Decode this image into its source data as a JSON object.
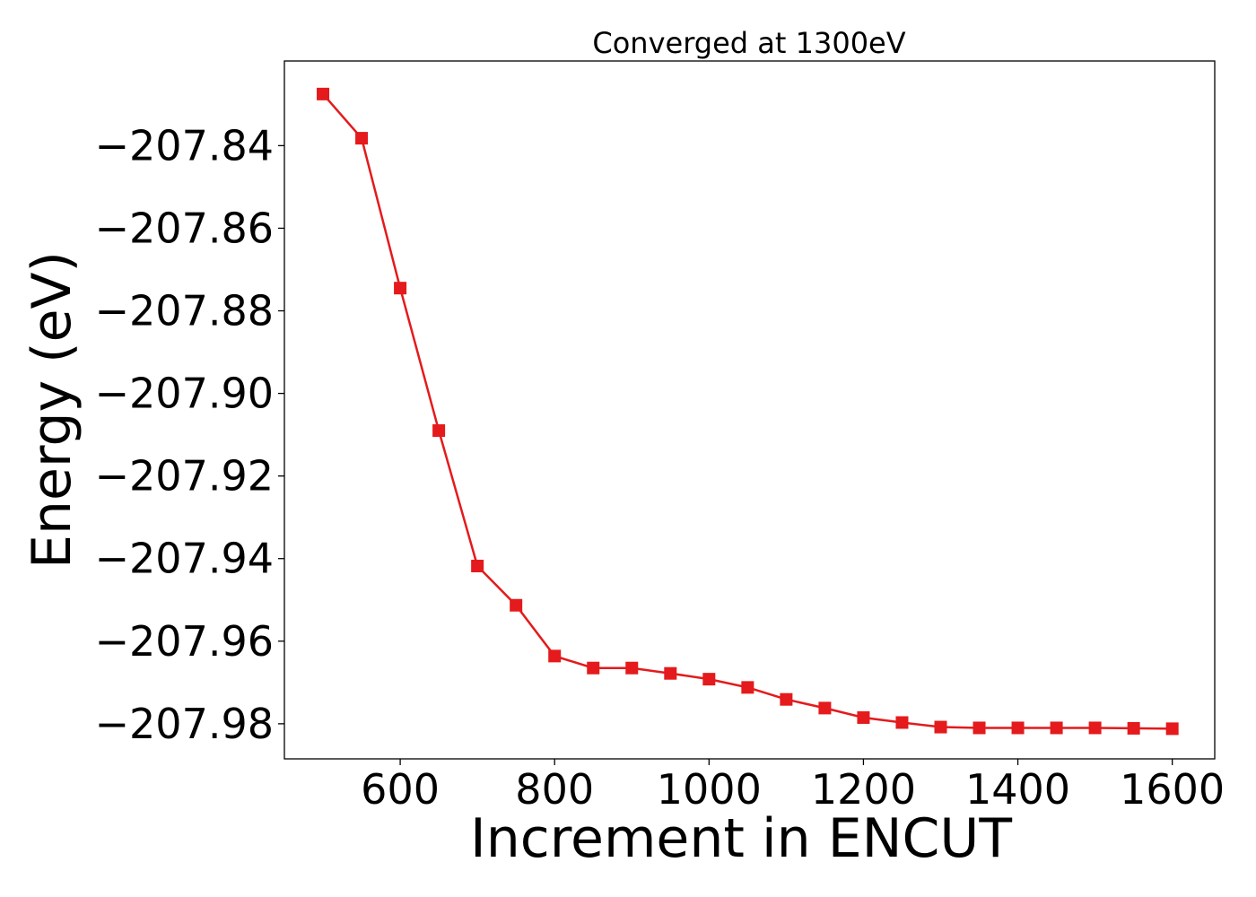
{
  "chart_data": {
    "type": "line",
    "title": "Converged at 1300eV",
    "xlabel": "Increment in ENCUT",
    "ylabel": "Energy (eV)",
    "xlim": [
      450,
      1655
    ],
    "ylim": [
      -207.9885,
      -207.8195
    ],
    "x_ticks": [
      600,
      800,
      1000,
      1200,
      1400,
      1600
    ],
    "x_tick_labels": [
      "600",
      "800",
      "1000",
      "1200",
      "1400",
      "1600"
    ],
    "y_ticks": [
      -207.84,
      -207.86,
      -207.88,
      -207.9,
      -207.92,
      -207.94,
      -207.96,
      -207.98
    ],
    "y_tick_labels": [
      "−207.84",
      "−207.86",
      "−207.88",
      "−207.90",
      "−207.92",
      "−207.94",
      "−207.96",
      "−207.98"
    ],
    "grid": false,
    "legend": "none",
    "series": [
      {
        "color": "#e41a1c",
        "marker": "square",
        "x": [
          500,
          550,
          600,
          650,
          700,
          750,
          800,
          850,
          900,
          950,
          1000,
          1050,
          1100,
          1150,
          1200,
          1250,
          1300,
          1350,
          1400,
          1450,
          1500,
          1550,
          1600
        ],
        "y": [
          -207.8275,
          -207.8382,
          -207.8745,
          -207.909,
          -207.9418,
          -207.9513,
          -207.9636,
          -207.9665,
          -207.9665,
          -207.9678,
          -207.9692,
          -207.9712,
          -207.9741,
          -207.9762,
          -207.9785,
          -207.9797,
          -207.9808,
          -207.981,
          -207.981,
          -207.981,
          -207.981,
          -207.9811,
          -207.9812
        ]
      }
    ]
  }
}
